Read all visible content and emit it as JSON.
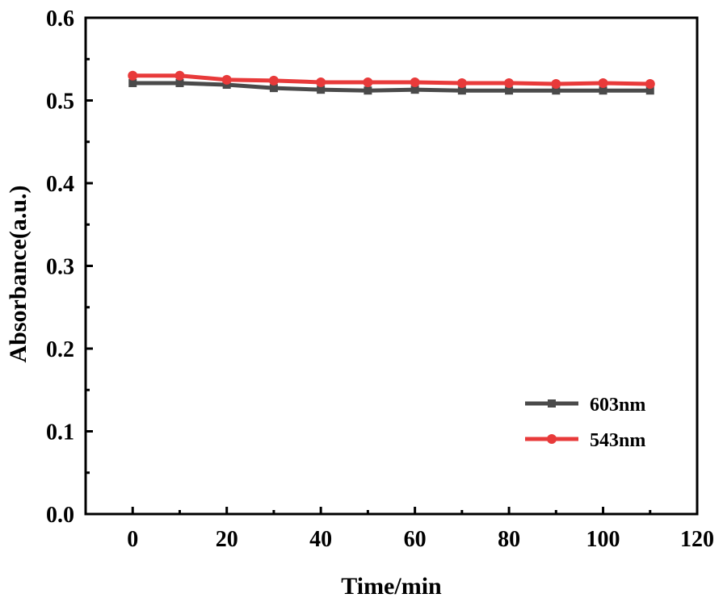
{
  "chart_data": {
    "type": "line",
    "title": "",
    "xlabel": "Time/min",
    "ylabel": "Absorbance(a.u.)",
    "xlim": [
      -10,
      120
    ],
    "ylim": [
      0.0,
      0.6
    ],
    "xticks": [
      0,
      20,
      40,
      60,
      80,
      100,
      120
    ],
    "xtick_labels": [
      "0",
      "20",
      "40",
      "60",
      "80",
      "100",
      "120"
    ],
    "yticks": [
      0.0,
      0.1,
      0.2,
      0.3,
      0.4,
      0.5,
      0.6
    ],
    "ytick_labels": [
      "0.0",
      "0.1",
      "0.2",
      "0.3",
      "0.4",
      "0.5",
      "0.6"
    ],
    "x": [
      0,
      10,
      20,
      30,
      40,
      50,
      60,
      70,
      80,
      90,
      100,
      110
    ],
    "series": [
      {
        "name": "603nm",
        "marker": "square",
        "color": "#4a4a4a",
        "values": [
          0.521,
          0.521,
          0.519,
          0.515,
          0.513,
          0.512,
          0.513,
          0.512,
          0.512,
          0.512,
          0.512,
          0.512
        ]
      },
      {
        "name": "543nm",
        "marker": "circle",
        "color": "#e83a3a",
        "values": [
          0.53,
          0.53,
          0.525,
          0.524,
          0.522,
          0.522,
          0.522,
          0.521,
          0.521,
          0.52,
          0.521,
          0.52
        ]
      }
    ],
    "legend_position": "bottom-right",
    "grid": false
  }
}
